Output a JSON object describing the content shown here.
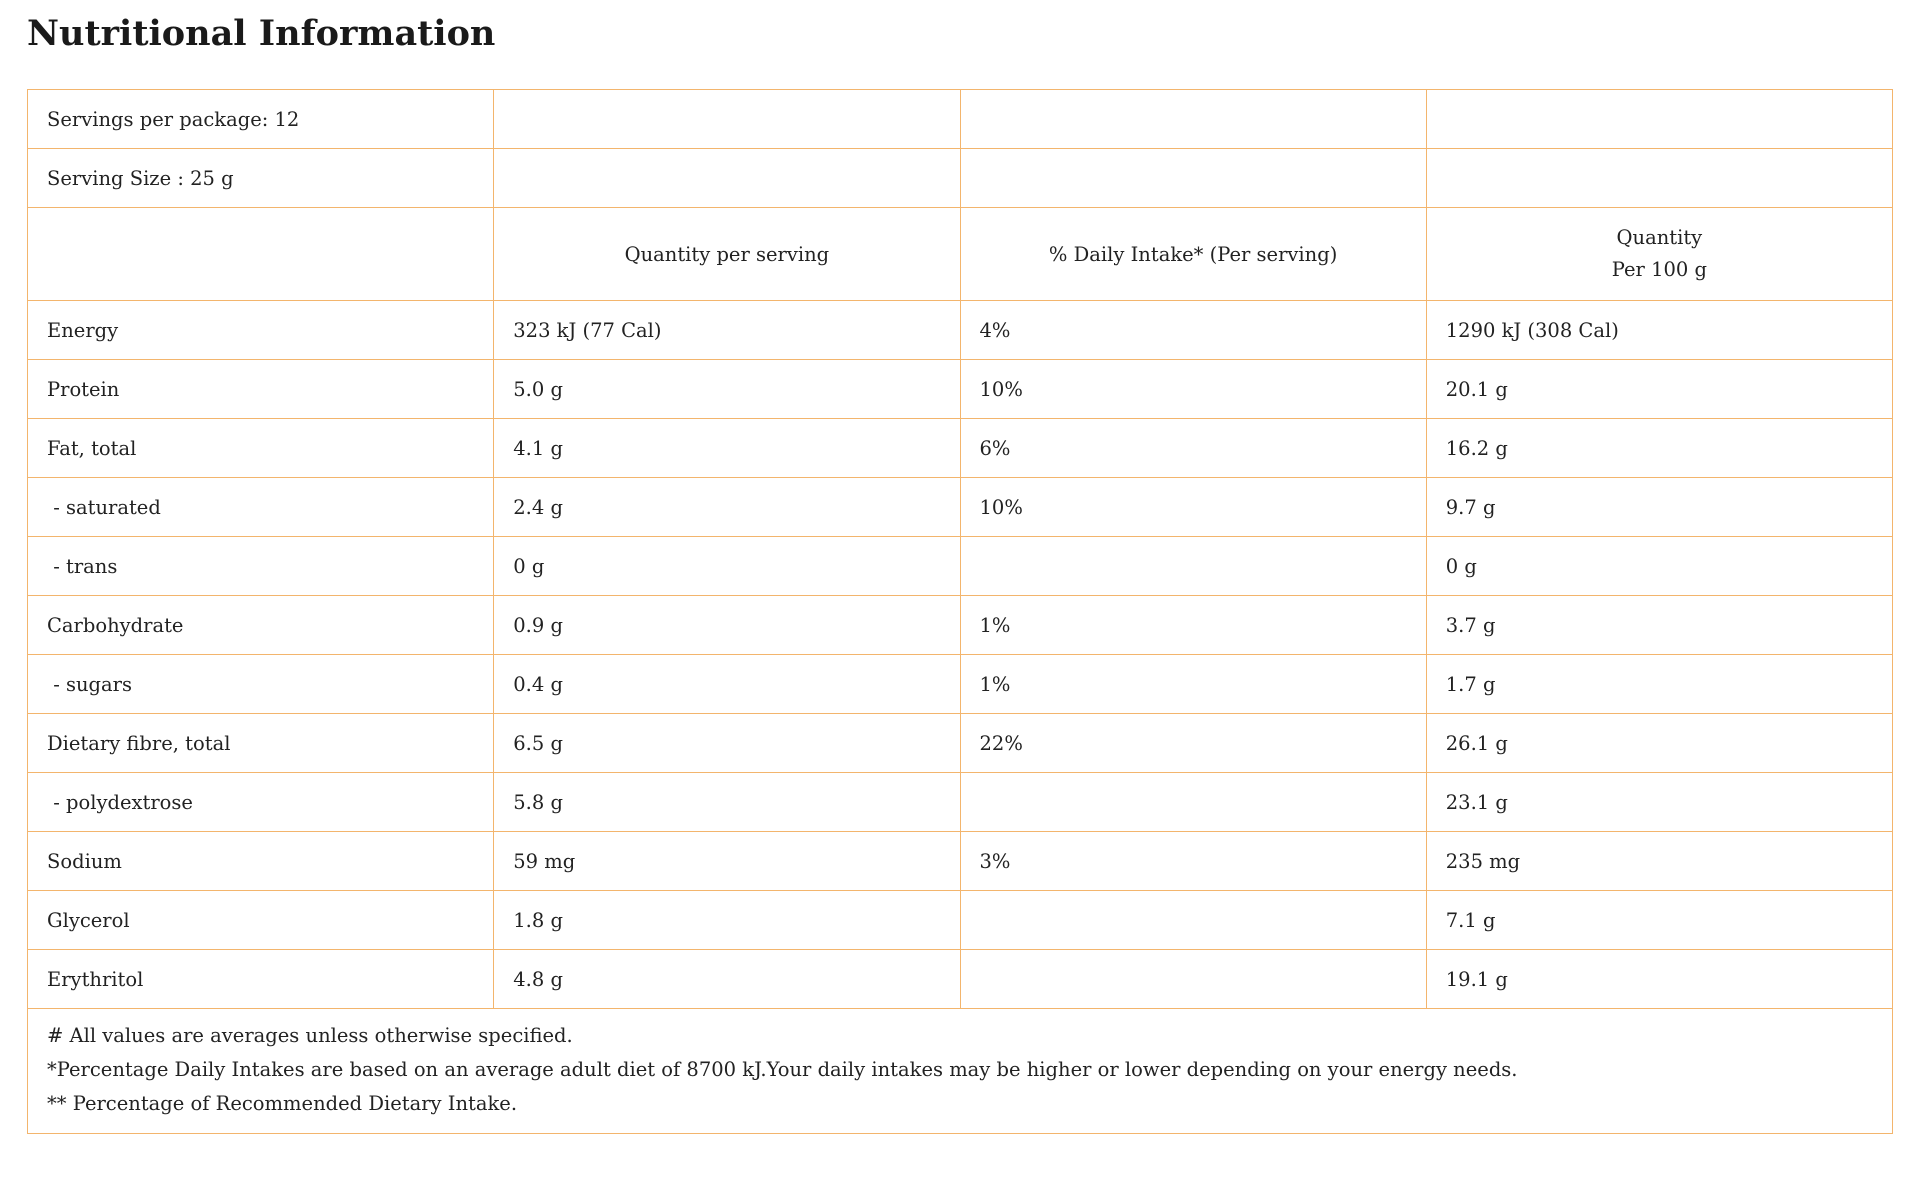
{
  "title": "Nutritional Information",
  "servings_per_package": "Servings per package: 12",
  "serving_size": "Serving Size : 25 g",
  "columns": {
    "qty_per_serving": "Quantity per serving",
    "daily_intake": "% Daily Intake* (Per serving)",
    "qty_per_100g_line1": "Quantity",
    "qty_per_100g_line2": "Per 100 g"
  },
  "rows": [
    {
      "name": "Energy",
      "per_serving": "323 kJ (77 Cal)",
      "daily": "4%",
      "per_100g": "1290 kJ (308 Cal)"
    },
    {
      "name": "Protein",
      "per_serving": "5.0 g",
      "daily": "10%",
      "per_100g": "20.1 g"
    },
    {
      "name": "Fat, total",
      "per_serving": "4.1 g",
      "daily": "6%",
      "per_100g": "16.2 g"
    },
    {
      "name": " - saturated",
      "per_serving": "2.4 g",
      "daily": "10%",
      "per_100g": "9.7 g"
    },
    {
      "name": " - trans",
      "per_serving": "0 g",
      "daily": "",
      "per_100g": "0 g"
    },
    {
      "name": "Carbohydrate",
      "per_serving": "0.9 g",
      "daily": "1%",
      "per_100g": "3.7 g"
    },
    {
      "name": " - sugars",
      "per_serving": "0.4 g",
      "daily": "1%",
      "per_100g": "1.7 g"
    },
    {
      "name": "Dietary fibre, total",
      "per_serving": "6.5 g",
      "daily": "22%",
      "per_100g": "26.1 g"
    },
    {
      "name": " - polydextrose",
      "per_serving": "5.8 g",
      "daily": "",
      "per_100g": "23.1 g"
    },
    {
      "name": "Sodium",
      "per_serving": "59 mg",
      "daily": "3%",
      "per_100g": "235 mg"
    },
    {
      "name": "Glycerol",
      "per_serving": "1.8 g",
      "daily": "",
      "per_100g": "7.1 g"
    },
    {
      "name": "Erythritol",
      "per_serving": "4.8 g",
      "daily": "",
      "per_100g": "19.1 g"
    }
  ],
  "footnotes": [
    "# All values are averages unless otherwise specified.",
    "*Percentage Daily Intakes are based on an average adult diet of 8700 kJ.Your daily intakes may be higher or lower depending on your energy needs.",
    "** Percentage of Recommended Dietary Intake."
  ],
  "colors": {
    "border": "#f3b56d",
    "text": "#222222",
    "background": "#ffffff"
  }
}
